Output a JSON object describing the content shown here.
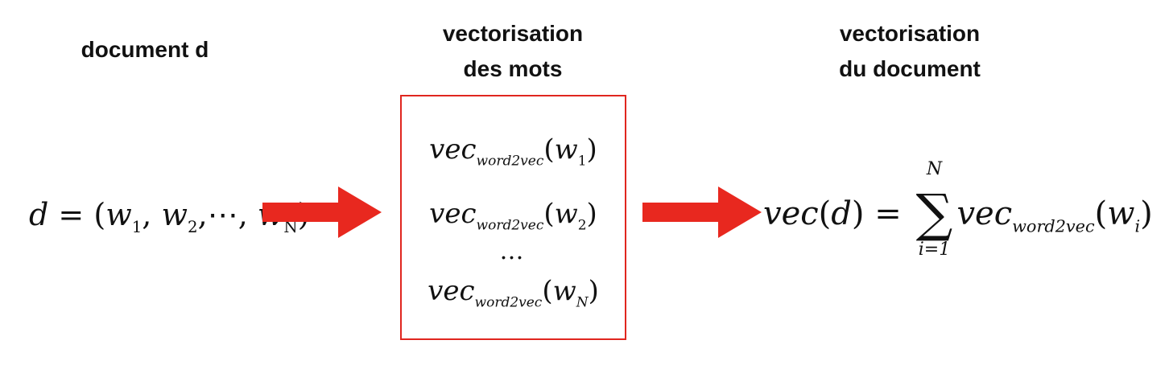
{
  "titles": {
    "document": "document d",
    "word_vec_line1": "vectorisation",
    "word_vec_line2": "des mots",
    "doc_vec_line1": "vectorisation",
    "doc_vec_line2": "du document"
  },
  "document_equation": {
    "lhs": "d",
    "equals": "=",
    "open": "(",
    "w": "w",
    "sub_1": "1",
    "sub_2": "2",
    "sub_N": "N",
    "comma": ",",
    "ellipsis": "⋯",
    "close": ")"
  },
  "word_vectors": {
    "vec": "vec",
    "sub": "word2vec",
    "open": "(",
    "close": ")",
    "w": "w",
    "sub_1": "1",
    "sub_2": "2",
    "sub_N": "N",
    "dots": "…"
  },
  "document_vector_equation": {
    "vec": "vec",
    "open": "(",
    "d": "d",
    "close": ")",
    "equals": "=",
    "sigma": "∑",
    "sum_upper": "N",
    "sum_lower": "i=1",
    "term_vec": "vec",
    "term_sub": "word2vec",
    "w": "w",
    "index": "i"
  },
  "colors": {
    "arrow": "#e8281f",
    "box_border": "#e0261f",
    "text": "#111111"
  },
  "icons": [
    "right-arrow-icon",
    "right-arrow-icon"
  ]
}
